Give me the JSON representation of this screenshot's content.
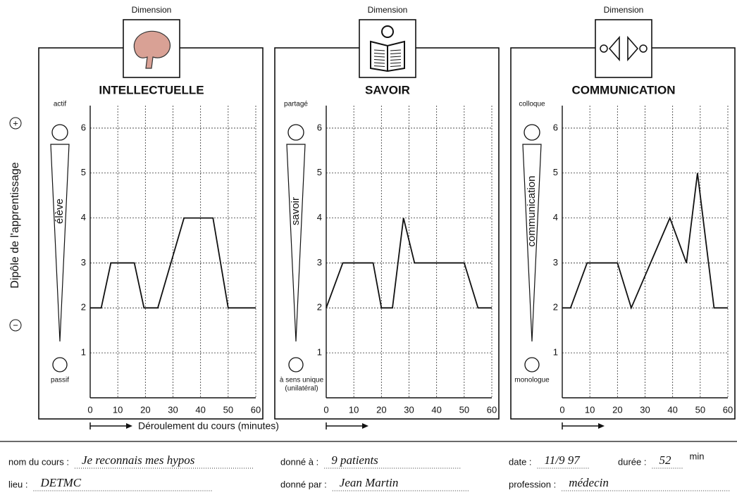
{
  "chart_data": [
    {
      "type": "line",
      "dimension_label": "Dimension",
      "title": "INTELLECTUELLE",
      "top_label": "actif",
      "side_label": "élève",
      "bottom_label": [
        "passif"
      ],
      "x_label": "Déroulement du cours (minutes)",
      "x": [
        0,
        4,
        7.5,
        16,
        19.5,
        24.5,
        34,
        44.5,
        50,
        60
      ],
      "values": [
        2,
        2,
        3,
        3,
        2,
        2,
        4,
        4,
        2,
        2
      ],
      "color": "#111111",
      "xlim": [
        0,
        60
      ],
      "xticks": [
        0,
        10,
        20,
        30,
        40,
        50,
        60
      ],
      "ylim": [
        0,
        6.5
      ],
      "yticks": [
        1,
        2,
        3,
        4,
        5,
        6
      ],
      "grid": true
    },
    {
      "type": "line",
      "dimension_label": "Dimension",
      "title": "SAVOIR",
      "top_label": "partagé",
      "side_label": "savoir",
      "bottom_label": [
        "à sens unique",
        "(unilatéral)"
      ],
      "x": [
        0,
        6,
        17,
        20,
        24,
        28,
        32,
        50,
        55,
        60
      ],
      "values": [
        2,
        3,
        3,
        2,
        2,
        4,
        3,
        3,
        2,
        2
      ],
      "color": "#111111",
      "xlim": [
        0,
        60
      ],
      "xticks": [
        0,
        10,
        20,
        30,
        40,
        50,
        60
      ],
      "ylim": [
        0,
        6.5
      ],
      "yticks": [
        1,
        2,
        3,
        4,
        5,
        6
      ],
      "grid": true
    },
    {
      "type": "line",
      "dimension_label": "Dimension",
      "title": "COMMUNICATION",
      "top_label": "colloque",
      "side_label": "communication",
      "bottom_label": [
        "monologue"
      ],
      "x": [
        0,
        3,
        9,
        20,
        25,
        39,
        45,
        49,
        55,
        60
      ],
      "values": [
        2,
        2,
        3,
        3,
        2,
        4,
        3,
        5,
        2,
        2
      ],
      "color": "#111111",
      "xlim": [
        0,
        60
      ],
      "xticks": [
        0,
        10,
        20,
        30,
        40,
        50,
        60
      ],
      "ylim": [
        0,
        6.5
      ],
      "yticks": [
        1,
        2,
        3,
        4,
        5,
        6
      ],
      "grid": true
    }
  ],
  "y_axis": {
    "label": "Dipôle de l'apprentissage",
    "plus": "+",
    "minus": "−"
  },
  "form": {
    "row1": [
      {
        "label": "nom du cours :",
        "value": "Je reconnais mes hypos"
      },
      {
        "label": "donné à :",
        "value": "9 patients"
      },
      {
        "label": "date :",
        "value": "11/9 97"
      },
      {
        "label": "durée :",
        "value": "52",
        "unit": "min"
      }
    ],
    "row2": [
      {
        "label": "lieu :",
        "value": "DETMC"
      },
      {
        "label": "donné par :",
        "value": "Jean Martin"
      },
      {
        "label": "profession :",
        "value": "médecin"
      }
    ]
  }
}
